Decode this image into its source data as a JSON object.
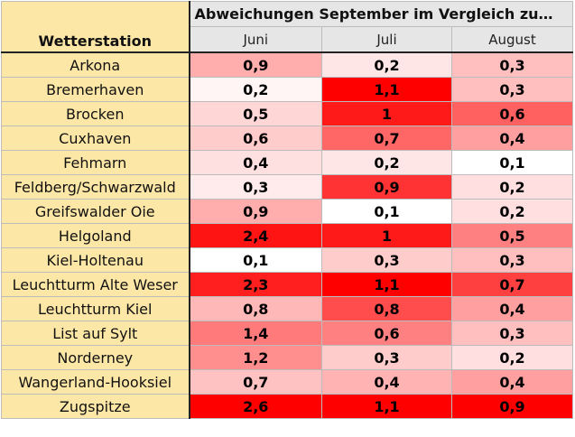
{
  "header": {
    "station_label": "Wetterstation",
    "title": "Abweichungen September im Vergleich zu…",
    "months": [
      "Juni",
      "Juli",
      "August"
    ]
  },
  "colors": {
    "max": "#ff0000",
    "min": "#ffffff",
    "station_bg": "#fde7a6",
    "header_bg": "#e6e6e6"
  },
  "rows": [
    {
      "station": "Arkona",
      "values": [
        "0,9",
        "0,2",
        "0,3"
      ]
    },
    {
      "station": "Bremerhaven",
      "values": [
        "0,2",
        "1,1",
        "0,3"
      ]
    },
    {
      "station": "Brocken",
      "values": [
        "0,5",
        "1",
        "0,6"
      ]
    },
    {
      "station": "Cuxhaven",
      "values": [
        "0,6",
        "0,7",
        "0,4"
      ]
    },
    {
      "station": "Fehmarn",
      "values": [
        "0,4",
        "0,2",
        "0,1"
      ]
    },
    {
      "station": "Feldberg/Schwarzwald",
      "values": [
        "0,3",
        "0,9",
        "0,2"
      ]
    },
    {
      "station": "Greifswalder Oie",
      "values": [
        "0,9",
        "0,1",
        "0,2"
      ]
    },
    {
      "station": "Helgoland",
      "values": [
        "2,4",
        "1",
        "0,5"
      ]
    },
    {
      "station": "Kiel-Holtenau",
      "values": [
        "0,1",
        "0,3",
        "0,3"
      ]
    },
    {
      "station": "Leuchtturm Alte Weser",
      "values": [
        "2,3",
        "1,1",
        "0,7"
      ]
    },
    {
      "station": "Leuchtturm Kiel",
      "values": [
        "0,8",
        "0,8",
        "0,4"
      ]
    },
    {
      "station": "List auf Sylt",
      "values": [
        "1,4",
        "0,6",
        "0,3"
      ]
    },
    {
      "station": "Norderney",
      "values": [
        "1,2",
        "0,3",
        "0,2"
      ]
    },
    {
      "station": "Wangerland-Hooksiel",
      "values": [
        "0,7",
        "0,4",
        "0,4"
      ]
    },
    {
      "station": "Zugspitze",
      "values": [
        "2,6",
        "1,1",
        "0,9"
      ]
    }
  ]
}
